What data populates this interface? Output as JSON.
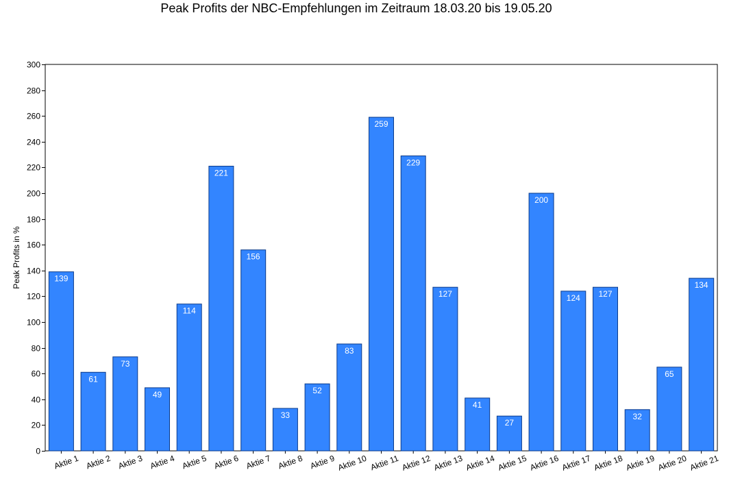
{
  "chart_data": {
    "type": "bar",
    "title": "Peak Profits der NBC-Empfehlungen im Zeitraum 18.03.20 bis 19.05.20",
    "xlabel": "",
    "ylabel": "Peak Profits in %",
    "ylim": [
      0,
      300
    ],
    "yticks": [
      0,
      20,
      40,
      60,
      80,
      100,
      120,
      140,
      160,
      180,
      200,
      220,
      240,
      260,
      280,
      300
    ],
    "grid": false,
    "legend": "none",
    "bar_color": "#3385ff",
    "bar_edge_color": "#0a3a8a",
    "categories": [
      "Aktie 1",
      "Aktie 2",
      "Aktie 3",
      "Aktie 4",
      "Aktie 5",
      "Aktie 6",
      "Aktie 7",
      "Aktie 8",
      "Aktie 9",
      "Aktie 10",
      "Aktie 11",
      "Aktie 12",
      "Aktie 13",
      "Aktie 14",
      "Aktie 15",
      "Aktie 16",
      "Aktie 17",
      "Aktie 18",
      "Aktie 19",
      "Aktie 20",
      "Aktie 21"
    ],
    "values": [
      139,
      61,
      73,
      49,
      114,
      221,
      156,
      33,
      52,
      83,
      259,
      229,
      127,
      41,
      27,
      200,
      124,
      127,
      32,
      65,
      134
    ]
  }
}
